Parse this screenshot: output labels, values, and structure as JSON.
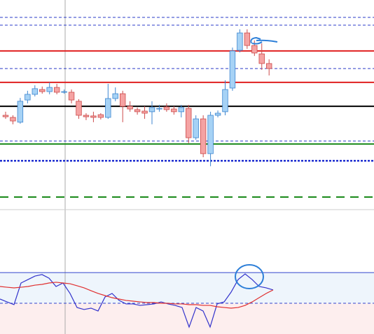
{
  "chart_data": [
    {
      "type": "candlestick",
      "ylim": [
        0,
        100
      ],
      "up_color": "#a6d2f5",
      "up_edge": "#3d86d0",
      "down_color": "#f5a3a3",
      "down_edge": "#cc4b4b",
      "open": [
        45,
        44,
        41.7,
        52.3,
        55,
        57.3,
        56.3,
        58.3,
        56,
        56,
        51.7,
        45,
        44.7,
        45.3,
        44,
        53,
        55.3,
        49.3,
        47.7,
        47,
        46.7,
        48,
        49,
        48,
        46.7,
        48.3,
        34.3,
        43.3,
        26.7,
        45,
        46.7,
        58,
        76,
        84.3,
        78.3,
        74.3,
        69.7
      ],
      "high": [
        46.7,
        45,
        53.3,
        56.7,
        59.3,
        58.7,
        60.7,
        60,
        57.3,
        57.3,
        52.7,
        46,
        46.7,
        46,
        60,
        58.3,
        56.7,
        51.7,
        48.7,
        49.3,
        51.7,
        50,
        50.7,
        49.3,
        50,
        50,
        45,
        45,
        46.7,
        47.3,
        61.7,
        77.3,
        86,
        86,
        80.7,
        79.3,
        71.7
      ],
      "low": [
        43.3,
        40.7,
        41,
        50.7,
        54,
        55.3,
        55,
        55,
        55.3,
        50.7,
        43.3,
        42.7,
        41.7,
        43,
        43.3,
        51.7,
        41.7,
        46.7,
        45.3,
        43.3,
        40.7,
        46.7,
        46.7,
        45.3,
        44,
        31.7,
        33.3,
        25,
        20.7,
        44,
        45,
        56.7,
        75,
        76.7,
        73.3,
        66.7,
        64
      ],
      "close": [
        44.3,
        42.3,
        51.7,
        55,
        57.7,
        56.3,
        58.3,
        56,
        56.3,
        52.3,
        45,
        44.3,
        44,
        44,
        53,
        55.3,
        49.3,
        48,
        46.7,
        46,
        48.7,
        48.3,
        47.7,
        46.7,
        48.7,
        34.3,
        43.3,
        26.7,
        45,
        46,
        57.3,
        75.7,
        84.3,
        78.3,
        74.7,
        69.7,
        67.3
      ],
      "levels": [
        {
          "value": 91.7,
          "color": "#2b3bc8",
          "style": "dashed"
        },
        {
          "value": 88,
          "color": "#2b3bc8",
          "style": "dashed"
        },
        {
          "value": 75.7,
          "color": "#e02020",
          "style": "solid"
        },
        {
          "value": 67.3,
          "color": "#2b3bc8",
          "style": "dashed"
        },
        {
          "value": 60.7,
          "color": "#e02020",
          "style": "solid"
        },
        {
          "value": 49.3,
          "color": "#000000",
          "style": "solid"
        },
        {
          "value": 32.7,
          "color": "#2b3bc8",
          "style": "dashed"
        },
        {
          "value": 31.3,
          "color": "#1a8a1a",
          "style": "solid"
        },
        {
          "value": 23.3,
          "color": "#1a2bd0",
          "style": "dotted"
        },
        {
          "value": 6,
          "color": "#1a8a1a",
          "style": "longdash"
        }
      ]
    },
    {
      "type": "line",
      "ylim": [
        0,
        100
      ],
      "levels": [
        49.4,
        24.7
      ],
      "series": [
        {
          "color": "#3333cc",
          "values": [
            28.1,
            25.8,
            23.6,
            41,
            43.8,
            46.6,
            47.8,
            44.9,
            38.2,
            41,
            32.6,
            21.3,
            19.7,
            20.8,
            18.5,
            29.8,
            32.6,
            27,
            24.2,
            24.2,
            23,
            23.6,
            24.2,
            25.8,
            24.2,
            23,
            21.3,
            5.6,
            21.3,
            18.5,
            5.6,
            24.2,
            25.8,
            33.7,
            43.8,
            48.3,
            43.8,
            38.2,
            37.1,
            35.4
          ]
        },
        {
          "color": "#e03030",
          "values": [
            38.2,
            37.6,
            37.1,
            37.6,
            38.2,
            39.3,
            39.9,
            41,
            41.6,
            41,
            40.4,
            38.8,
            37.1,
            34.8,
            32.6,
            30.9,
            29.2,
            28.1,
            27,
            26.4,
            25.8,
            25.3,
            25.3,
            24.7,
            24.7,
            24.2,
            24.2,
            23.6,
            23.6,
            23,
            23,
            21.9,
            21.3,
            20.8,
            21.3,
            23,
            25.8,
            29.2,
            32.6,
            35.4
          ]
        }
      ]
    }
  ]
}
